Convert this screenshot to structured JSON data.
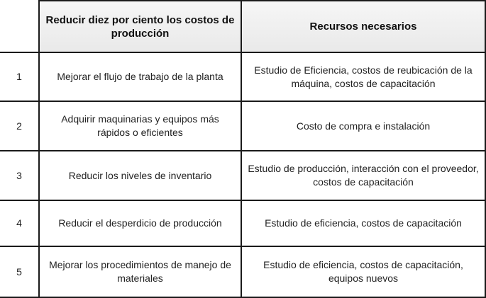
{
  "table": {
    "headers": [
      "",
      "Reducir diez por ciento los costos de producción",
      "Recursos necesarios"
    ],
    "rows": [
      {
        "num": "1",
        "action": "Mejorar el flujo de trabajo de la planta",
        "resources": "Estudio de Eficiencia, costos de reubicación de la máquina, costos de capacitación"
      },
      {
        "num": "2",
        "action": "Adquirir maquinarias y equipos más rápidos o eficientes",
        "resources": "Costo de compra e instalación"
      },
      {
        "num": "3",
        "action": "Reducir los niveles de inventario",
        "resources": "Estudio de producción, interacción con el proveedor, costos de capacitación"
      },
      {
        "num": "4",
        "action": "Reducir el desperdicio de producción",
        "resources": "Estudio de eficiencia, costos de capacitación"
      },
      {
        "num": "5",
        "action": "Mejorar los procedimientos de manejo de materiales",
        "resources": "Estudio de eficiencia, costos de capacitación, equipos nuevos"
      }
    ]
  }
}
